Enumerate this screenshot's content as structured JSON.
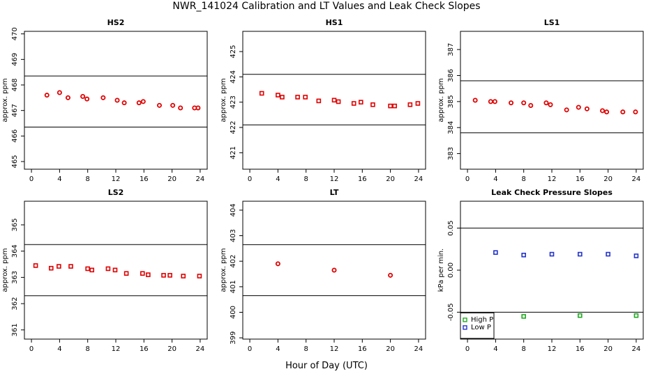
{
  "title": "NWR_141024  Calibration and LT Values and Leak Check Slopes",
  "xlabel": "Hour of Day (UTC)",
  "colors": {
    "points": "#e00000",
    "high_p": "#22aa22",
    "low_p": "#2233cc",
    "lines": "#000000"
  },
  "chart_data": [
    {
      "type": "scatter",
      "title": "HS2",
      "ylabel": "approx. ppm",
      "xlim": [
        -1,
        25
      ],
      "ylim": [
        464.7,
        470.1
      ],
      "xticks": [
        "0",
        "4",
        "8",
        "12",
        "16",
        "20",
        "24"
      ],
      "yticks": [
        "465",
        "466",
        "467",
        "468",
        "469",
        "470"
      ],
      "hlines": [
        468.35,
        466.35
      ],
      "series": [
        {
          "marker": "circle",
          "x": [
            2.2,
            4.0,
            5.2,
            7.3,
            7.9,
            10.2,
            12.2,
            13.2,
            15.3,
            15.9,
            18.2,
            20.1,
            21.2,
            23.2,
            23.7
          ],
          "y": [
            467.6,
            467.7,
            467.5,
            467.55,
            467.45,
            467.5,
            467.4,
            467.3,
            467.3,
            467.35,
            467.2,
            467.2,
            467.1,
            467.1,
            467.1
          ]
        }
      ]
    },
    {
      "type": "scatter",
      "title": "HS1",
      "ylabel": "approx. ppm",
      "xlim": [
        -1,
        25
      ],
      "ylim": [
        420.35,
        425.8
      ],
      "xticks": [
        "0",
        "4",
        "8",
        "12",
        "16",
        "20",
        "24"
      ],
      "yticks": [
        "421",
        "422",
        "423",
        "424",
        "425"
      ],
      "hlines": [
        424.1,
        422.1
      ],
      "series": [
        {
          "marker": "square",
          "x": [
            1.7,
            4.0,
            4.6,
            6.8,
            7.9,
            9.8,
            12.0,
            12.6,
            14.8,
            15.8,
            17.5,
            20.0,
            20.6,
            22.8,
            23.9
          ],
          "y": [
            423.35,
            423.28,
            423.2,
            423.2,
            423.2,
            423.05,
            423.08,
            423.02,
            422.95,
            423.0,
            422.9,
            422.85,
            422.85,
            422.9,
            422.95
          ]
        }
      ]
    },
    {
      "type": "scatter",
      "title": "LS1",
      "ylabel": "approx. ppm",
      "xlim": [
        -1,
        25
      ],
      "ylim": [
        382.4,
        387.7
      ],
      "xticks": [
        "0",
        "4",
        "8",
        "12",
        "16",
        "20",
        "24"
      ],
      "yticks": [
        "383",
        "384",
        "385",
        "386",
        "387"
      ],
      "hlines": [
        385.8,
        383.8
      ],
      "series": [
        {
          "marker": "circle",
          "x": [
            1.1,
            3.3,
            3.9,
            6.2,
            8.0,
            9.0,
            11.2,
            11.8,
            14.1,
            15.8,
            17.0,
            19.2,
            19.8,
            22.1,
            23.9
          ],
          "y": [
            385.05,
            385.0,
            385.0,
            384.95,
            384.95,
            384.85,
            384.95,
            384.88,
            384.68,
            384.78,
            384.72,
            384.65,
            384.6,
            384.6,
            384.6
          ]
        }
      ]
    },
    {
      "type": "scatter",
      "title": "LS2",
      "ylabel": "approx. ppm",
      "xlim": [
        -1,
        25
      ],
      "ylim": [
        360.65,
        365.9
      ],
      "xticks": [
        "0",
        "4",
        "8",
        "12",
        "16",
        "20",
        "24"
      ],
      "yticks": [
        "361",
        "362",
        "363",
        "364",
        "365"
      ],
      "hlines": [
        364.25,
        362.3
      ],
      "series": [
        {
          "marker": "square",
          "x": [
            0.6,
            2.8,
            3.9,
            5.6,
            8.0,
            8.6,
            10.9,
            11.9,
            13.5,
            15.8,
            16.6,
            18.8,
            19.7,
            21.6,
            23.9
          ],
          "y": [
            363.45,
            363.35,
            363.42,
            363.42,
            363.33,
            363.28,
            363.33,
            363.28,
            363.15,
            363.15,
            363.1,
            363.08,
            363.08,
            363.05,
            363.05
          ]
        }
      ]
    },
    {
      "type": "scatter",
      "title": "LT",
      "ylabel": "approx. ppm",
      "xlim": [
        -1,
        25
      ],
      "ylim": [
        398.95,
        404.35
      ],
      "xticks": [
        "0",
        "4",
        "8",
        "12",
        "16",
        "20",
        "24"
      ],
      "yticks": [
        "399",
        "400",
        "401",
        "402",
        "403",
        "404"
      ],
      "hlines": [
        402.65,
        400.65
      ],
      "series": [
        {
          "marker": "circle",
          "x": [
            4.0,
            12.0,
            20.0
          ],
          "y": [
            401.9,
            401.65,
            401.45
          ]
        }
      ]
    },
    {
      "type": "scatter",
      "title": "Leak Check Pressure Slopes",
      "ylabel": "kPa per min.",
      "xlim": [
        -1,
        25
      ],
      "ylim": [
        -0.082,
        0.082
      ],
      "xticks": [
        "0",
        "4",
        "8",
        "12",
        "16",
        "20",
        "24"
      ],
      "yticks": [
        "-0.05",
        "0.00",
        "0.05"
      ],
      "hlines": [
        0.05,
        -0.05
      ],
      "legend": {
        "position": "bottom-left",
        "entries": [
          "High P",
          "Low P"
        ]
      },
      "series": [
        {
          "name": "High P",
          "marker": "square",
          "color": "#22aa22",
          "x": [
            8,
            16,
            24
          ],
          "y": [
            -0.055,
            -0.054,
            -0.054
          ]
        },
        {
          "name": "Low P",
          "marker": "square",
          "color": "#2233cc",
          "x": [
            4,
            8,
            12,
            16,
            20,
            24
          ],
          "y": [
            0.021,
            0.018,
            0.019,
            0.019,
            0.019,
            0.017
          ]
        }
      ]
    }
  ]
}
